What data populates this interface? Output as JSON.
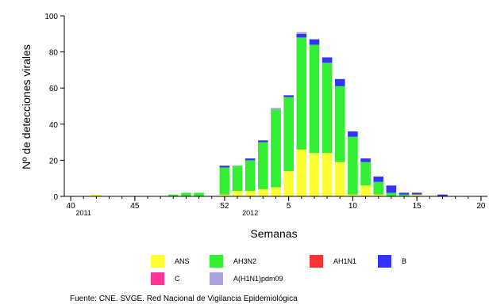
{
  "chart_data": {
    "type": "bar",
    "stacked": true,
    "ylabel": "Nº de detecciones virales",
    "xlabel": "Semanas",
    "ylim": [
      0,
      100
    ],
    "yticks": [
      0,
      20,
      40,
      60,
      80,
      100
    ],
    "weeks": [
      "40",
      "41",
      "42",
      "43",
      "44",
      "45",
      "46",
      "47",
      "48",
      "49",
      "50",
      "51",
      "52",
      "1",
      "2",
      "3",
      "4",
      "5",
      "6",
      "7",
      "8",
      "9",
      "10",
      "11",
      "12",
      "13",
      "14",
      "15",
      "16",
      "17",
      "18",
      "19",
      "20"
    ],
    "xtick_labels": [
      {
        "week": "40",
        "label": "40"
      },
      {
        "week": "45",
        "label": "45"
      },
      {
        "week": "52",
        "label": "52"
      },
      {
        "week": "5",
        "label": "5"
      },
      {
        "week": "10",
        "label": "10"
      },
      {
        "week": "15",
        "label": "15"
      },
      {
        "week": "20",
        "label": "20"
      }
    ],
    "year_labels": [
      {
        "week": "41",
        "label": "2011"
      },
      {
        "week": "2",
        "label": "2012"
      }
    ],
    "series": [
      {
        "name": "ANS",
        "color": "#ffff33",
        "values": [
          0,
          0,
          1,
          0,
          0,
          0,
          0,
          0,
          0,
          0,
          0,
          0,
          1,
          3,
          3,
          4,
          5,
          14,
          26,
          24,
          24,
          19,
          1,
          6,
          1,
          0,
          0,
          1,
          0,
          0,
          0,
          0,
          0
        ]
      },
      {
        "name": "AH3N2",
        "color": "#33ee33",
        "values": [
          0,
          0,
          0,
          0,
          0,
          0,
          0,
          0,
          1,
          2,
          2,
          0,
          15,
          14,
          17,
          26,
          43,
          41,
          62,
          60,
          50,
          42,
          32,
          13,
          7,
          2,
          1,
          0,
          0,
          0,
          0,
          0,
          0
        ]
      },
      {
        "name": "AH1N1",
        "color": "#ff3333",
        "values": [
          0,
          0,
          0,
          0,
          0,
          0,
          0,
          0,
          0,
          0,
          0,
          0,
          0,
          0,
          0,
          0,
          0,
          0,
          0,
          0,
          0,
          0,
          0,
          0,
          0,
          0,
          0,
          0,
          0,
          0,
          0,
          0,
          0
        ]
      },
      {
        "name": "B",
        "color": "#3333ff",
        "values": [
          0,
          0,
          0,
          0,
          0,
          0,
          0,
          0,
          0,
          0,
          0,
          0,
          1,
          0,
          1,
          1,
          0,
          1,
          2,
          3,
          3,
          4,
          3,
          2,
          3,
          4,
          1,
          1,
          0,
          1,
          0,
          0,
          0
        ]
      },
      {
        "name": "C",
        "color": "#ff3399",
        "values": [
          0,
          0,
          0,
          0,
          0,
          0,
          0,
          0,
          0,
          0,
          0,
          0,
          0,
          0,
          0,
          0,
          0,
          0,
          0,
          0,
          0,
          0,
          0,
          0,
          0,
          0,
          0,
          0,
          0,
          0,
          0,
          0,
          0
        ]
      },
      {
        "name": "A(H1N1)pdm09",
        "color": "#aaa3dd",
        "values": [
          0,
          0,
          0,
          0,
          0,
          0,
          0,
          0,
          0,
          0,
          0,
          0,
          0,
          0,
          0,
          0,
          1,
          0,
          1,
          0,
          0,
          0,
          0,
          0,
          0,
          0,
          0,
          0,
          0,
          0,
          0,
          0,
          0
        ]
      }
    ],
    "source": "Fuente: CNE. SVGE. Red Nacional de Vigilancia Epidemiológica"
  }
}
